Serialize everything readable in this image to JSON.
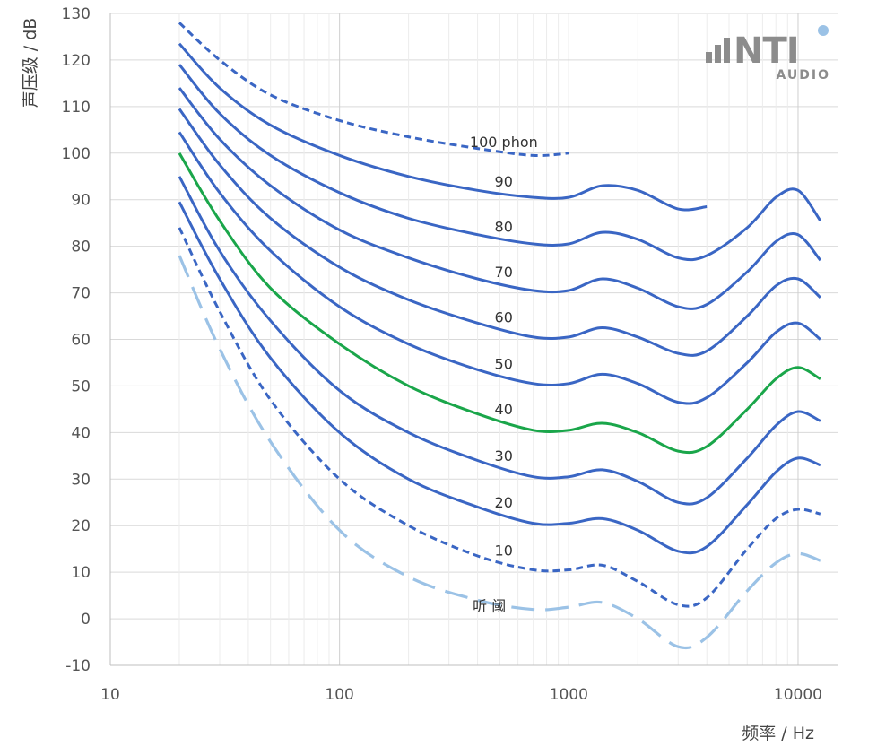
{
  "chart_data": {
    "type": "line",
    "title": "",
    "xlabel": "频率 / Hz",
    "ylabel": "声压级 / dB",
    "x_scale": "log",
    "xlim": [
      10,
      15000
    ],
    "ylim": [
      -10,
      130
    ],
    "x_ticks": [
      "10",
      "100",
      "1000",
      "10000"
    ],
    "y_ticks": [
      "130",
      "120",
      "110",
      "100",
      "90",
      "80",
      "70",
      "60",
      "50",
      "40",
      "30",
      "20",
      "10",
      "0",
      "-10"
    ],
    "grid": true,
    "legend": "none",
    "colors": {
      "main": "#3a66c4",
      "highlight": "#1aa64a",
      "threshold": "#9bc2e6",
      "grid": "#d9d9d9",
      "axis": "#bfbfbf"
    },
    "series": [
      {
        "label": "听 阈",
        "style": "long-dash",
        "color": "#9bc2e6",
        "points": [
          [
            20,
            78
          ],
          [
            30,
            58
          ],
          [
            50,
            38
          ],
          [
            100,
            19
          ],
          [
            200,
            9
          ],
          [
            400,
            4
          ],
          [
            700,
            2
          ],
          [
            1000,
            2.5
          ],
          [
            1400,
            3.5
          ],
          [
            2000,
            0
          ],
          [
            3000,
            -6
          ],
          [
            4000,
            -4
          ],
          [
            6000,
            6
          ],
          [
            8000,
            12
          ],
          [
            10000,
            14
          ],
          [
            12500,
            12.5
          ]
        ]
      },
      {
        "label": "10",
        "style": "short-dash",
        "color": "#3a66c4",
        "points": [
          [
            20,
            84
          ],
          [
            30,
            66
          ],
          [
            50,
            47
          ],
          [
            100,
            30
          ],
          [
            200,
            20
          ],
          [
            400,
            13.5
          ],
          [
            700,
            10.5
          ],
          [
            1000,
            10.5
          ],
          [
            1400,
            11.5
          ],
          [
            2000,
            8
          ],
          [
            3000,
            3
          ],
          [
            4000,
            4.5
          ],
          [
            6000,
            15
          ],
          [
            8000,
            21.5
          ],
          [
            10000,
            23.5
          ],
          [
            12500,
            22.5
          ]
        ]
      },
      {
        "label": "20",
        "style": "solid",
        "color": "#3a66c4",
        "points": [
          [
            20,
            89.5
          ],
          [
            30,
            73
          ],
          [
            50,
            56
          ],
          [
            100,
            40
          ],
          [
            200,
            30
          ],
          [
            400,
            24
          ],
          [
            700,
            20.5
          ],
          [
            1000,
            20.5
          ],
          [
            1400,
            21.5
          ],
          [
            2000,
            19
          ],
          [
            3000,
            14.5
          ],
          [
            4000,
            15.5
          ],
          [
            6000,
            24.5
          ],
          [
            8000,
            31.5
          ],
          [
            10000,
            34.5
          ],
          [
            12500,
            33
          ]
        ]
      },
      {
        "label": "30",
        "style": "solid",
        "color": "#3a66c4",
        "points": [
          [
            20,
            95
          ],
          [
            30,
            79
          ],
          [
            50,
            64
          ],
          [
            100,
            49
          ],
          [
            200,
            40
          ],
          [
            400,
            34
          ],
          [
            700,
            30.5
          ],
          [
            1000,
            30.5
          ],
          [
            1400,
            32
          ],
          [
            2000,
            29.5
          ],
          [
            3000,
            25
          ],
          [
            4000,
            26
          ],
          [
            6000,
            34.5
          ],
          [
            8000,
            41.5
          ],
          [
            10000,
            44.5
          ],
          [
            12500,
            42.5
          ]
        ]
      },
      {
        "label": "40",
        "style": "solid",
        "color": "#1aa64a",
        "points": [
          [
            20,
            100
          ],
          [
            30,
            85.5
          ],
          [
            50,
            71
          ],
          [
            100,
            59
          ],
          [
            200,
            50
          ],
          [
            400,
            44
          ],
          [
            700,
            40.5
          ],
          [
            1000,
            40.5
          ],
          [
            1400,
            42
          ],
          [
            2000,
            40
          ],
          [
            3000,
            36
          ],
          [
            4000,
            37
          ],
          [
            6000,
            45
          ],
          [
            8000,
            51.5
          ],
          [
            10000,
            54
          ],
          [
            12500,
            51.5
          ]
        ]
      },
      {
        "label": "50",
        "style": "solid",
        "color": "#3a66c4",
        "points": [
          [
            20,
            104.5
          ],
          [
            30,
            91.5
          ],
          [
            50,
            79
          ],
          [
            100,
            67
          ],
          [
            200,
            59
          ],
          [
            400,
            53.5
          ],
          [
            700,
            50.5
          ],
          [
            1000,
            50.5
          ],
          [
            1400,
            52.5
          ],
          [
            2000,
            50.5
          ],
          [
            3000,
            46.5
          ],
          [
            4000,
            47.5
          ],
          [
            6000,
            55
          ],
          [
            8000,
            61.5
          ],
          [
            10000,
            63.5
          ],
          [
            12500,
            60
          ]
        ]
      },
      {
        "label": "60",
        "style": "solid",
        "color": "#3a66c4",
        "points": [
          [
            20,
            109.5
          ],
          [
            30,
            97.5
          ],
          [
            50,
            86
          ],
          [
            100,
            75.5
          ],
          [
            200,
            68.5
          ],
          [
            400,
            63.5
          ],
          [
            700,
            60.5
          ],
          [
            1000,
            60.5
          ],
          [
            1400,
            62.5
          ],
          [
            2000,
            60.5
          ],
          [
            3000,
            57
          ],
          [
            4000,
            57.5
          ],
          [
            6000,
            65
          ],
          [
            8000,
            71.5
          ],
          [
            10000,
            73
          ],
          [
            12500,
            69
          ]
        ]
      },
      {
        "label": "70",
        "style": "solid",
        "color": "#3a66c4",
        "points": [
          [
            20,
            114
          ],
          [
            30,
            103
          ],
          [
            50,
            93
          ],
          [
            100,
            83.5
          ],
          [
            200,
            77.5
          ],
          [
            400,
            73
          ],
          [
            700,
            70.5
          ],
          [
            1000,
            70.5
          ],
          [
            1400,
            73
          ],
          [
            2000,
            71
          ],
          [
            3000,
            67
          ],
          [
            4000,
            67.5
          ],
          [
            6000,
            74.5
          ],
          [
            8000,
            81
          ],
          [
            10000,
            82.5
          ],
          [
            12500,
            77
          ]
        ]
      },
      {
        "label": "80",
        "style": "solid",
        "color": "#3a66c4",
        "points": [
          [
            20,
            119
          ],
          [
            30,
            108.5
          ],
          [
            50,
            99.5
          ],
          [
            100,
            91.5
          ],
          [
            200,
            86
          ],
          [
            400,
            82.5
          ],
          [
            700,
            80.5
          ],
          [
            1000,
            80.5
          ],
          [
            1400,
            83
          ],
          [
            2000,
            81.5
          ],
          [
            3000,
            77.5
          ],
          [
            4000,
            78
          ],
          [
            6000,
            84
          ],
          [
            8000,
            90.5
          ],
          [
            10000,
            92
          ],
          [
            12500,
            85.5
          ]
        ]
      },
      {
        "label": "90",
        "style": "solid",
        "color": "#3a66c4",
        "points": [
          [
            20,
            123.5
          ],
          [
            30,
            114
          ],
          [
            50,
            106
          ],
          [
            100,
            99.5
          ],
          [
            200,
            95
          ],
          [
            400,
            92
          ],
          [
            700,
            90.5
          ],
          [
            1000,
            90.5
          ],
          [
            1400,
            93
          ],
          [
            2000,
            92
          ],
          [
            3000,
            88
          ],
          [
            4000,
            88.5
          ]
        ]
      },
      {
        "label": "100 phon",
        "style": "short-dash",
        "color": "#3a66c4",
        "points": [
          [
            20,
            128
          ],
          [
            30,
            120
          ],
          [
            50,
            112.5
          ],
          [
            100,
            107
          ],
          [
            200,
            103.5
          ],
          [
            400,
            101
          ],
          [
            700,
            99.5
          ],
          [
            1000,
            100
          ]
        ]
      }
    ]
  },
  "logo": {
    "brand": "NTI",
    "sub": "AUDIO",
    "dot_color": "#9bc2e6",
    "text_color": "#8c8c8c"
  }
}
